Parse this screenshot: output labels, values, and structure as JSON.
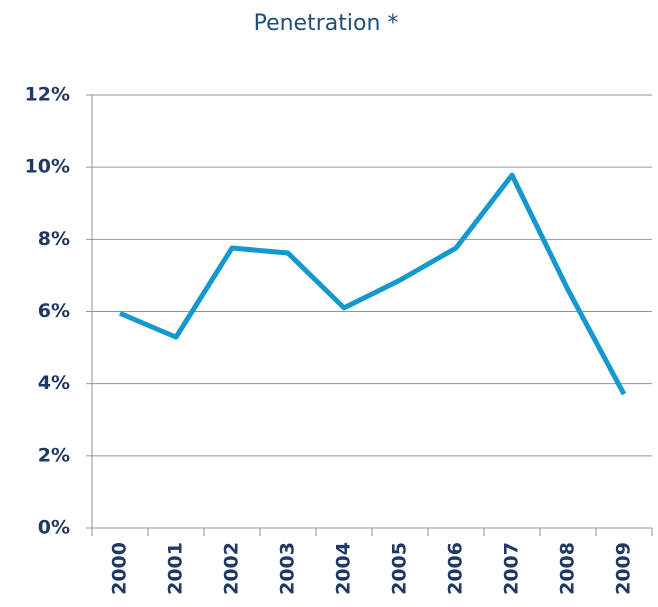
{
  "chart_data": {
    "type": "line",
    "title": "Penetration *",
    "categories": [
      "2000",
      "2001",
      "2002",
      "2003",
      "2004",
      "2005",
      "2006",
      "2007",
      "2008",
      "2009"
    ],
    "series": [
      {
        "name": "Penetration",
        "color": "#1598cf",
        "values": [
          5.95,
          5.29,
          7.76,
          7.62,
          6.1,
          6.87,
          7.76,
          9.78,
          6.6,
          3.71
        ]
      }
    ],
    "ylim": [
      0,
      12
    ],
    "yticks": [
      {
        "value": 0,
        "label": "0%"
      },
      {
        "value": 2,
        "label": "2%"
      },
      {
        "value": 4,
        "label": "4%"
      },
      {
        "value": 6,
        "label": "6%"
      },
      {
        "value": 8,
        "label": "8%"
      },
      {
        "value": 10,
        "label": "10%"
      },
      {
        "value": 12,
        "label": "12%"
      }
    ],
    "grid": true
  }
}
